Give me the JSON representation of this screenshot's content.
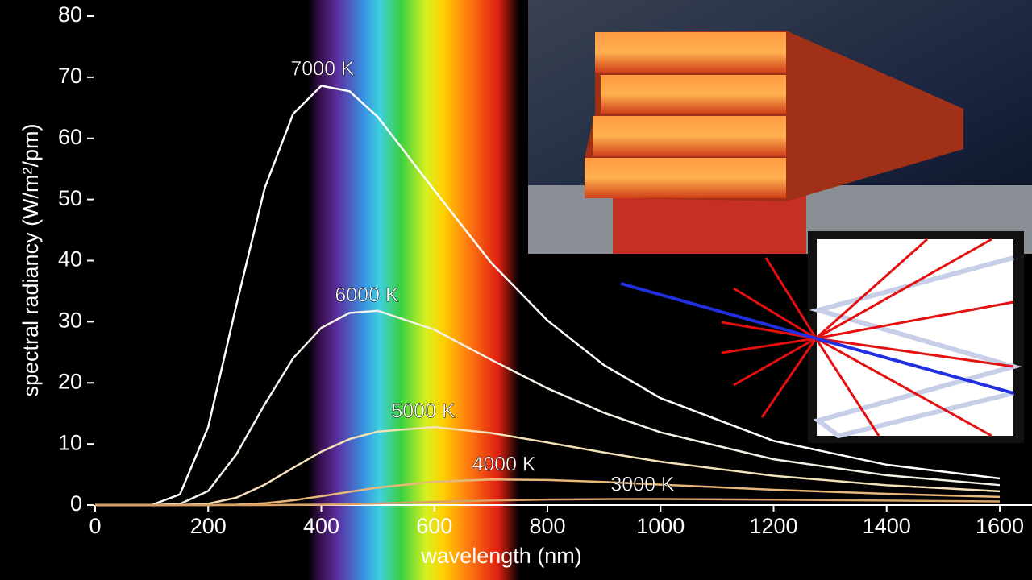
{
  "chart_data": {
    "type": "line",
    "ylabel": "spectral radiancy (W/m²/pm)",
    "xlabel": "wavelength (nm)",
    "x": [
      0,
      100,
      150,
      200,
      250,
      300,
      350,
      400,
      450,
      500,
      600,
      700,
      800,
      900,
      1000,
      1200,
      1400,
      1600
    ],
    "series": [
      {
        "name": "7000 K",
        "color": "#ffffff",
        "values": [
          0,
          0.0141,
          1.756,
          12.79,
          32.8,
          51.9,
          63.98,
          68.6,
          67.7,
          63.5,
          51.5,
          39.7,
          30.2,
          22.9,
          17.5,
          10.5,
          6.6,
          4.35
        ]
      },
      {
        "name": "6000 K",
        "color": "#f4f1e6",
        "values": [
          0,
          0,
          0.178,
          2.31,
          8.33,
          16.5,
          24.0,
          29.0,
          31.45,
          31.8,
          28.7,
          23.8,
          19.1,
          15.1,
          11.9,
          7.5,
          4.87,
          3.27
        ]
      },
      {
        "name": "5000 K",
        "color": "#f3e2b8",
        "values": [
          0,
          0,
          0.0073,
          0.21,
          1.22,
          3.35,
          6.09,
          8.74,
          10.8,
          12.03,
          12.76,
          11.8,
          10.24,
          8.6,
          7.1,
          4.79,
          3.25,
          2.25
        ]
      },
      {
        "name": "4000 K",
        "color": "#e8b87a",
        "values": [
          0,
          0,
          0,
          0.0057,
          0.069,
          0.3,
          0.78,
          1.45,
          2.18,
          2.87,
          3.82,
          4.18,
          4.1,
          3.79,
          3.35,
          2.51,
          1.84,
          1.34
        ]
      },
      {
        "name": "3000 K",
        "color": "#d9a066",
        "values": [
          0,
          0,
          0,
          0,
          0,
          0.0056,
          0.025,
          0.072,
          0.15,
          0.26,
          0.52,
          0.75,
          0.91,
          0.98,
          0.99,
          0.89,
          0.74,
          0.6
        ]
      }
    ],
    "xlim": [
      0,
      1657
    ],
    "ylim": [
      0,
      80
    ],
    "xticks": [
      0,
      200,
      400,
      600,
      800,
      1000,
      1200,
      1400,
      1600
    ],
    "yticks": [
      0,
      10,
      20,
      30,
      40,
      50,
      60,
      70,
      80
    ]
  }
}
